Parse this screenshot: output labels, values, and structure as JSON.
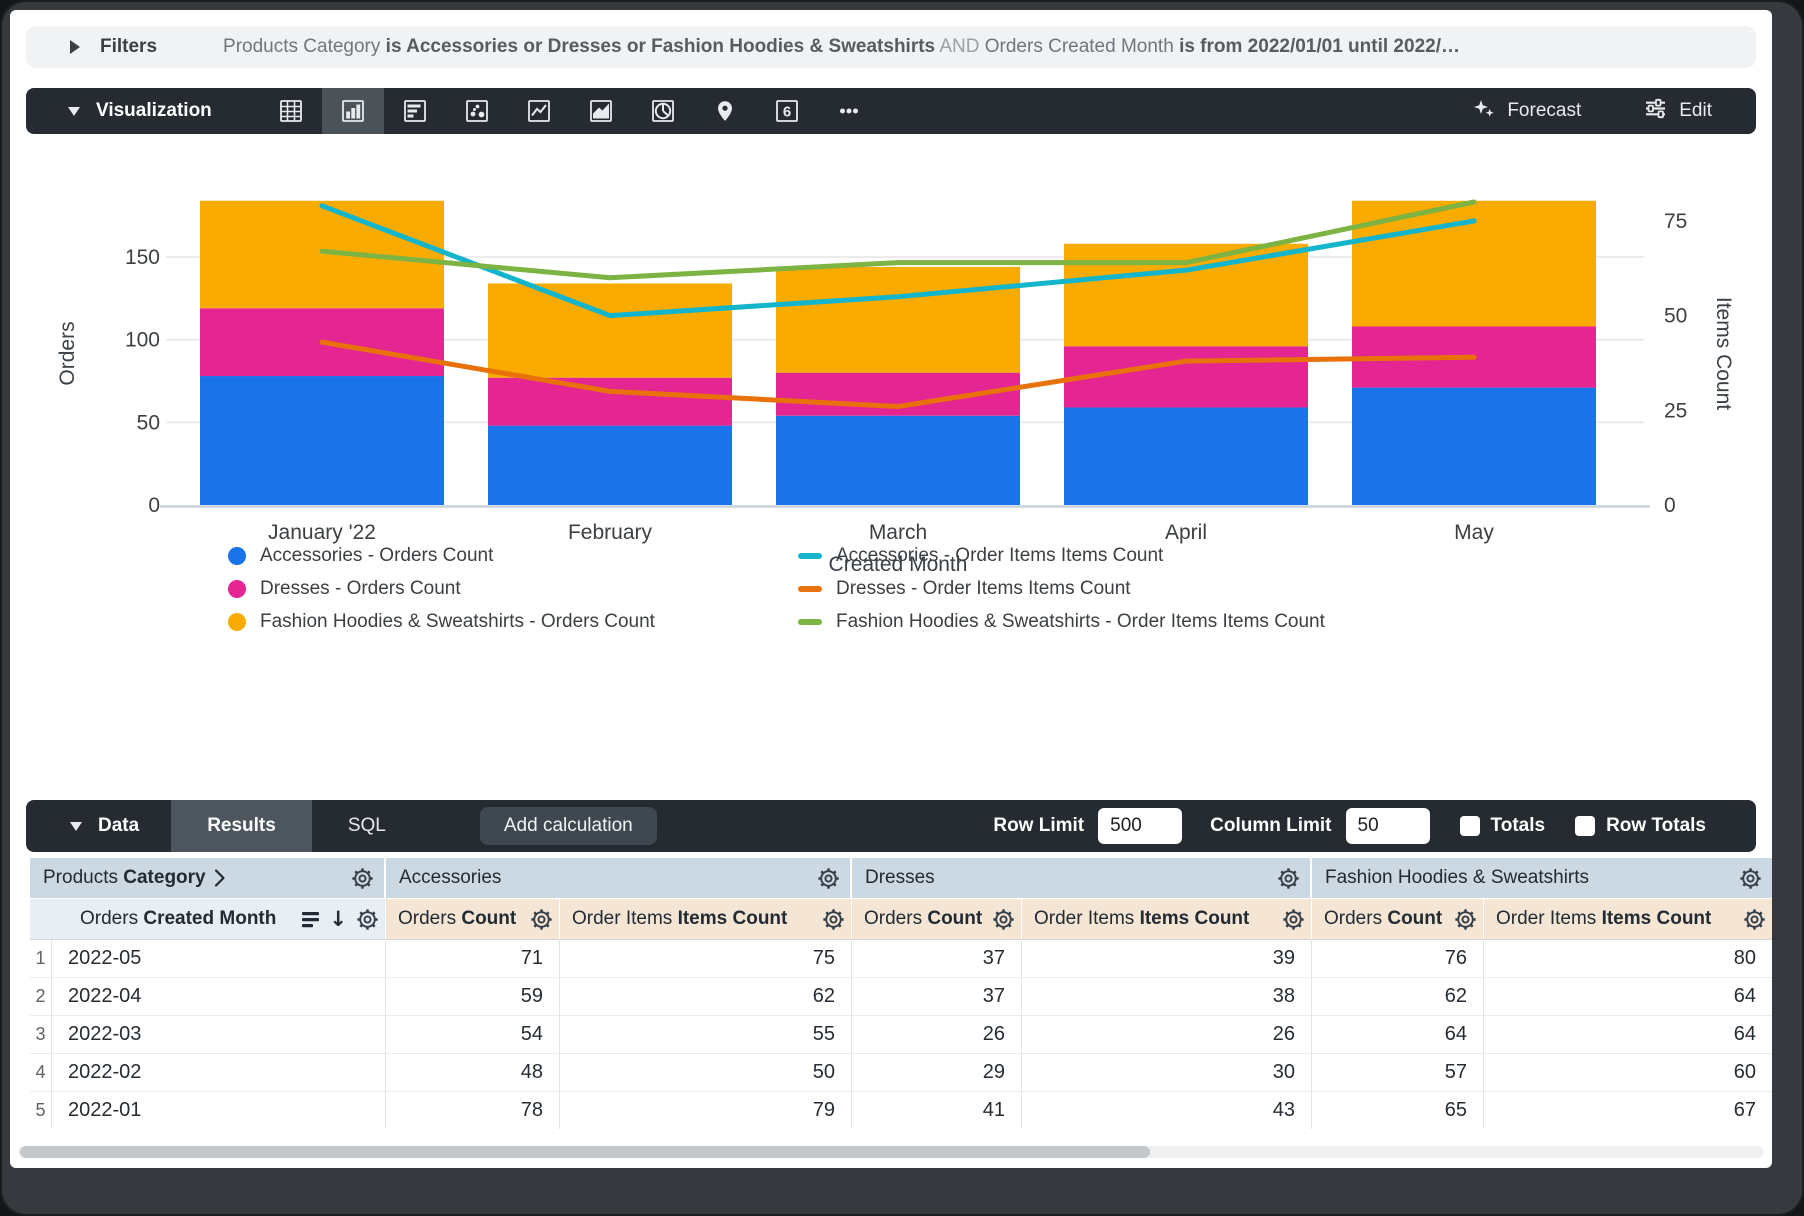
{
  "filters": {
    "label": "Filters",
    "segments": [
      {
        "text": "Products Category ",
        "style": "dim"
      },
      {
        "text": "is Accessories or Dresses or Fashion Hoodies & Sweatshirts",
        "style": "strong"
      },
      {
        "text": " AND ",
        "style": "muted"
      },
      {
        "text": "Orders Created Month ",
        "style": "dim"
      },
      {
        "text": "is from 2022/01/01 until 2022/…",
        "style": "strong"
      }
    ]
  },
  "viz": {
    "title": "Visualization",
    "icons": [
      {
        "name": "table-chart-icon",
        "selected": false
      },
      {
        "name": "column-chart-icon",
        "selected": true
      },
      {
        "name": "bar-chart-icon",
        "selected": false
      },
      {
        "name": "scatter-chart-icon",
        "selected": false
      },
      {
        "name": "line-chart-icon",
        "selected": false
      },
      {
        "name": "area-chart-icon",
        "selected": false
      },
      {
        "name": "pie-chart-icon",
        "selected": false
      },
      {
        "name": "map-chart-icon",
        "selected": false
      },
      {
        "name": "single-value-icon",
        "selected": false,
        "glyph": "6"
      },
      {
        "name": "more-options-icon",
        "selected": false
      }
    ],
    "forecast_label": "Forecast",
    "edit_label": "Edit"
  },
  "chart_data": {
    "type": "combo-stacked-bar-line",
    "categories": [
      "January '22",
      "February",
      "March",
      "April",
      "May"
    ],
    "bar_series": [
      {
        "name": "Accessories - Orders Count",
        "color": "#1A73E8",
        "values": [
          78,
          48,
          54,
          59,
          71
        ]
      },
      {
        "name": "Dresses - Orders Count",
        "color": "#E52592",
        "values": [
          41,
          29,
          26,
          37,
          37
        ]
      },
      {
        "name": "Fashion Hoodies & Sweatshirts - Orders Count",
        "color": "#F9AB00",
        "values": [
          65,
          57,
          64,
          62,
          76
        ]
      }
    ],
    "line_series": [
      {
        "name": "Accessories - Order Items Items Count",
        "color": "#12B5CB",
        "values": [
          79,
          50,
          55,
          62,
          75
        ]
      },
      {
        "name": "Dresses - Order Items Items Count",
        "color": "#E8710A",
        "values": [
          43,
          30,
          26,
          38,
          39
        ]
      },
      {
        "name": "Fashion Hoodies & Sweatshirts - Order Items Items Count",
        "color": "#7CB342",
        "values": [
          67,
          60,
          64,
          64,
          80
        ]
      }
    ],
    "left_axis": {
      "label": "Orders",
      "ticks": [
        0,
        50,
        100,
        150
      ],
      "max": 184
    },
    "right_axis": {
      "label": "Items Count",
      "ticks": [
        0,
        25,
        50,
        75
      ],
      "max": 80
    },
    "xlabel": "Created Month",
    "grid": true,
    "legend_position": "bottom"
  },
  "data_bar": {
    "title": "Data",
    "tabs": [
      {
        "label": "Results",
        "active": true
      },
      {
        "label": "SQL",
        "active": false
      }
    ],
    "add_calculation_label": "Add calculation",
    "row_limit_label": "Row Limit",
    "row_limit_value": "500",
    "column_limit_label": "Column Limit",
    "column_limit_value": "50",
    "totals_label": "Totals",
    "row_totals_label": "Row Totals",
    "totals_checked": false,
    "row_totals_checked": false
  },
  "table": {
    "groups": [
      {
        "plain": "Products ",
        "bold": "Category",
        "chevron": true
      },
      {
        "label": "Accessories"
      },
      {
        "label": "Dresses"
      },
      {
        "label": "Fashion Hoodies & Sweatshirts"
      }
    ],
    "dim_header": {
      "plain": "Orders ",
      "bold": "Created Month"
    },
    "measure_headers": [
      {
        "plain": "Orders ",
        "bold": "Count"
      },
      {
        "plain": "Order Items ",
        "bold": "Items Count"
      }
    ],
    "rows": [
      {
        "num": "1",
        "month": "2022-05",
        "values": [
          "71",
          "75",
          "37",
          "39",
          "76",
          "80"
        ]
      },
      {
        "num": "2",
        "month": "2022-04",
        "values": [
          "59",
          "62",
          "37",
          "38",
          "62",
          "64"
        ]
      },
      {
        "num": "3",
        "month": "2022-03",
        "values": [
          "54",
          "55",
          "26",
          "26",
          "64",
          "64"
        ]
      },
      {
        "num": "4",
        "month": "2022-02",
        "values": [
          "48",
          "50",
          "29",
          "30",
          "57",
          "60"
        ]
      },
      {
        "num": "5",
        "month": "2022-01",
        "values": [
          "78",
          "79",
          "41",
          "43",
          "65",
          "67"
        ]
      }
    ]
  },
  "colors": {
    "toolbar_bg": "#262b31",
    "accent_blue": "#1A73E8",
    "magenta": "#E52592",
    "amber": "#F9AB00",
    "cyan": "#12B5CB",
    "orange": "#E8710A",
    "green": "#7CB342",
    "group_header_bg": "#ccd8e2",
    "measure_header_bg": "#f4e5d5",
    "dim_header_bg": "#e9eef4"
  }
}
